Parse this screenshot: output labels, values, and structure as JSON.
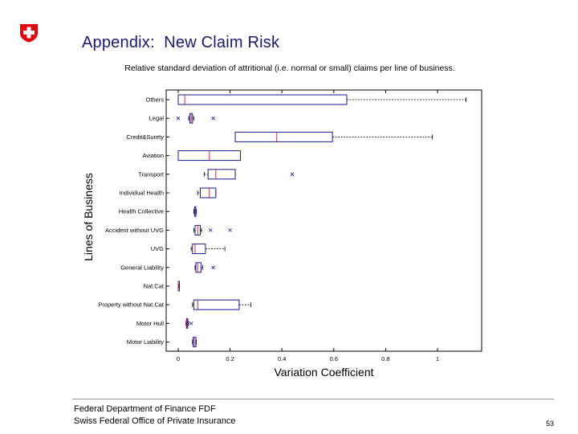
{
  "header": {
    "title": "Appendix:  New Claim Risk",
    "logo_color": "#e3000f"
  },
  "footer": {
    "line1": "Federal Department of Finance FDF",
    "line2": "Swiss Federal Office of Private Insurance",
    "page_number": "53"
  },
  "chart_data": {
    "type": "boxplot",
    "orientation": "horizontal",
    "title": "Relative standard deviation of attritional (i.e. normal or small) claims per line of business.",
    "xlabel": "Variation Coefficient",
    "ylabel": "Lines of Business",
    "xlim": [
      0,
      1.12
    ],
    "xticks": [
      "0",
      "0.2",
      "0.4",
      "0.6",
      "0.8",
      "1"
    ],
    "xtick_values": [
      0,
      0.2,
      0.4,
      0.6,
      0.8,
      1
    ],
    "grid": false,
    "box_color": "#1a1a8c",
    "median_color": "#c0304a",
    "categories": [
      "Others",
      "Legal",
      "Credit&Surety",
      "Aviation",
      "Transport",
      "Individual Health",
      "Health Collective",
      "Accident without UVG",
      "UVG",
      "General Liability",
      "Nat.Cat",
      "Property without Nat.Cat",
      "Motor Hull",
      "Motor Liability"
    ],
    "boxes": [
      {
        "whisker_low": 0.0,
        "q1": 0.0,
        "median": 0.025,
        "q3": 0.65,
        "whisker_high": 1.11,
        "outliers": []
      },
      {
        "whisker_low": 0.04,
        "q1": 0.045,
        "median": 0.05,
        "q3": 0.055,
        "whisker_high": 0.06,
        "outliers": [
          0.0,
          0.135
        ]
      },
      {
        "whisker_low": 0.22,
        "q1": 0.22,
        "median": 0.38,
        "q3": 0.595,
        "whisker_high": 0.98,
        "outliers": []
      },
      {
        "whisker_low": 0.0,
        "q1": 0.0,
        "median": 0.12,
        "q3": 0.24,
        "whisker_high": 0.24,
        "outliers": []
      },
      {
        "whisker_low": 0.1,
        "q1": 0.115,
        "median": 0.145,
        "q3": 0.22,
        "whisker_high": 0.22,
        "outliers": [
          0.44
        ]
      },
      {
        "whisker_low": 0.075,
        "q1": 0.085,
        "median": 0.12,
        "q3": 0.145,
        "whisker_high": 0.145,
        "outliers": []
      },
      {
        "whisker_low": 0.06,
        "q1": 0.063,
        "median": 0.066,
        "q3": 0.068,
        "whisker_high": 0.07,
        "outliers": []
      },
      {
        "whisker_low": 0.06,
        "q1": 0.065,
        "median": 0.075,
        "q3": 0.085,
        "whisker_high": 0.09,
        "outliers": [
          0.125,
          0.2
        ]
      },
      {
        "whisker_low": 0.05,
        "q1": 0.055,
        "median": 0.065,
        "q3": 0.105,
        "whisker_high": 0.18,
        "outliers": []
      },
      {
        "whisker_low": 0.065,
        "q1": 0.068,
        "median": 0.075,
        "q3": 0.088,
        "whisker_high": 0.095,
        "outliers": [
          0.135
        ]
      },
      {
        "whisker_low": 0.0,
        "q1": 0.0,
        "median": 0.0,
        "q3": 0.002,
        "whisker_high": 0.003,
        "outliers": []
      },
      {
        "whisker_low": 0.055,
        "q1": 0.06,
        "median": 0.075,
        "q3": 0.235,
        "whisker_high": 0.28,
        "outliers": []
      },
      {
        "whisker_low": 0.03,
        "q1": 0.032,
        "median": 0.034,
        "q3": 0.036,
        "whisker_high": 0.04,
        "outliers": [
          0.05
        ]
      },
      {
        "whisker_low": 0.055,
        "q1": 0.058,
        "median": 0.062,
        "q3": 0.068,
        "whisker_high": 0.07,
        "outliers": []
      }
    ]
  }
}
